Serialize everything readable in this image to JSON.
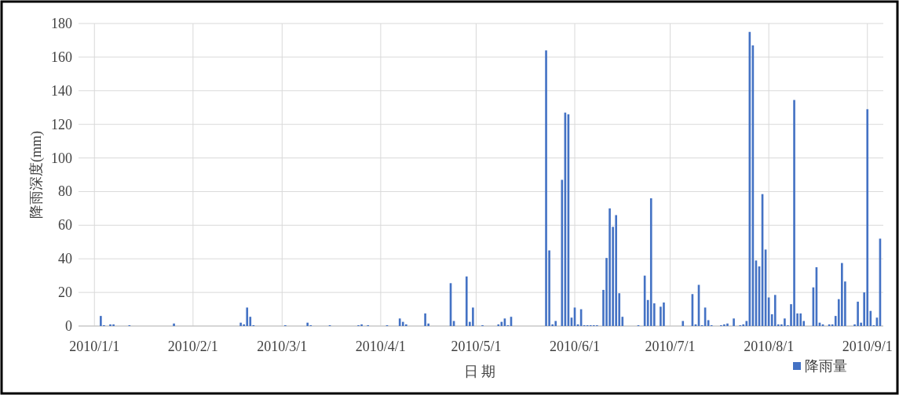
{
  "chart_data": {
    "type": "bar",
    "xlabel": "日期",
    "ylabel": "降雨深度(mm)",
    "legend": "bottom right",
    "grid": true,
    "xlim": [
      "2009-12-27",
      "2010-09-06"
    ],
    "ylim": [
      0,
      180
    ],
    "xticks": [
      {
        "value": "2010-01-01",
        "label": "2010/1/1"
      },
      {
        "value": "2010-02-01",
        "label": "2010/2/1"
      },
      {
        "value": "2010-03-01",
        "label": "2010/3/1"
      },
      {
        "value": "2010-04-01",
        "label": "2010/4/1"
      },
      {
        "value": "2010-05-01",
        "label": "2010/5/1"
      },
      {
        "value": "2010-06-01",
        "label": "2010/6/1"
      },
      {
        "value": "2010-07-01",
        "label": "2010/7/1"
      },
      {
        "value": "2010-08-01",
        "label": "2010/8/1"
      },
      {
        "value": "2010-09-01",
        "label": "2010/9/1"
      }
    ],
    "yticks": [
      0,
      20,
      40,
      60,
      80,
      100,
      120,
      140,
      160,
      180
    ],
    "x": [
      "2010-01-03",
      "2010-01-04",
      "2010-01-06",
      "2010-01-07",
      "2010-01-12",
      "2010-01-26",
      "2010-02-16",
      "2010-02-17",
      "2010-02-18",
      "2010-02-19",
      "2010-02-20",
      "2010-03-02",
      "2010-03-09",
      "2010-03-10",
      "2010-03-16",
      "2010-03-25",
      "2010-03-26",
      "2010-03-28",
      "2010-04-03",
      "2010-04-07",
      "2010-04-08",
      "2010-04-09",
      "2010-04-15",
      "2010-04-16",
      "2010-04-23",
      "2010-04-24",
      "2010-04-28",
      "2010-04-29",
      "2010-04-30",
      "2010-05-03",
      "2010-05-08",
      "2010-05-09",
      "2010-05-10",
      "2010-05-11",
      "2010-05-12",
      "2010-05-23",
      "2010-05-24",
      "2010-05-25",
      "2010-05-26",
      "2010-05-28",
      "2010-05-29",
      "2010-05-30",
      "2010-05-31",
      "2010-06-01",
      "2010-06-02",
      "2010-06-03",
      "2010-06-04",
      "2010-06-05",
      "2010-06-06",
      "2010-06-07",
      "2010-06-08",
      "2010-06-10",
      "2010-06-11",
      "2010-06-12",
      "2010-06-13",
      "2010-06-14",
      "2010-06-15",
      "2010-06-16",
      "2010-06-21",
      "2010-06-23",
      "2010-06-24",
      "2010-06-25",
      "2010-06-26",
      "2010-06-28",
      "2010-06-29",
      "2010-07-05",
      "2010-07-08",
      "2010-07-09",
      "2010-07-10",
      "2010-07-11",
      "2010-07-12",
      "2010-07-13",
      "2010-07-14",
      "2010-07-17",
      "2010-07-18",
      "2010-07-19",
      "2010-07-21",
      "2010-07-23",
      "2010-07-24",
      "2010-07-25",
      "2010-07-26",
      "2010-07-27",
      "2010-07-28",
      "2010-07-29",
      "2010-07-30",
      "2010-07-31",
      "2010-08-01",
      "2010-08-02",
      "2010-08-03",
      "2010-08-04",
      "2010-08-05",
      "2010-08-06",
      "2010-08-07",
      "2010-08-08",
      "2010-08-09",
      "2010-08-10",
      "2010-08-11",
      "2010-08-12",
      "2010-08-15",
      "2010-08-16",
      "2010-08-17",
      "2010-08-18",
      "2010-08-20",
      "2010-08-21",
      "2010-08-22",
      "2010-08-23",
      "2010-08-24",
      "2010-08-25",
      "2010-08-28",
      "2010-08-29",
      "2010-08-30",
      "2010-08-31",
      "2010-09-01",
      "2010-09-02",
      "2010-09-03",
      "2010-09-04",
      "2010-09-05"
    ],
    "series": [
      {
        "name": "降雨量",
        "color": "#4472c4",
        "values": [
          6,
          0.5,
          1,
          1,
          0.5,
          1.5,
          2,
          1,
          11,
          5.5,
          0.5,
          0.5,
          2,
          0.5,
          0.5,
          0.5,
          1,
          0.5,
          0.5,
          4.5,
          2.5,
          1,
          7.5,
          1.5,
          25.5,
          3,
          29.5,
          2.5,
          11,
          0.5,
          1,
          2.5,
          4.5,
          0.5,
          5.5,
          164,
          45,
          1,
          3,
          87,
          127,
          126,
          5,
          11,
          1,
          10,
          0.5,
          0.5,
          0.5,
          0.5,
          0.5,
          21.5,
          40.5,
          70,
          59,
          66,
          19.5,
          5.5,
          0.5,
          30,
          15.5,
          76,
          13.5,
          11.5,
          14,
          3,
          19,
          1,
          24.5,
          0.5,
          11,
          3.5,
          0.5,
          0.5,
          1,
          1.5,
          4.5,
          0.5,
          1,
          3,
          175,
          167,
          39,
          35.5,
          78.5,
          45.5,
          17,
          7,
          18.5,
          1,
          1,
          4.5,
          0.5,
          13,
          134.5,
          7.5,
          7.5,
          3,
          23,
          35,
          2,
          1,
          1,
          1,
          6,
          16,
          37.5,
          26.5,
          1,
          14.5,
          2,
          20,
          129,
          9,
          0.5,
          5,
          52
        ]
      }
    ]
  }
}
